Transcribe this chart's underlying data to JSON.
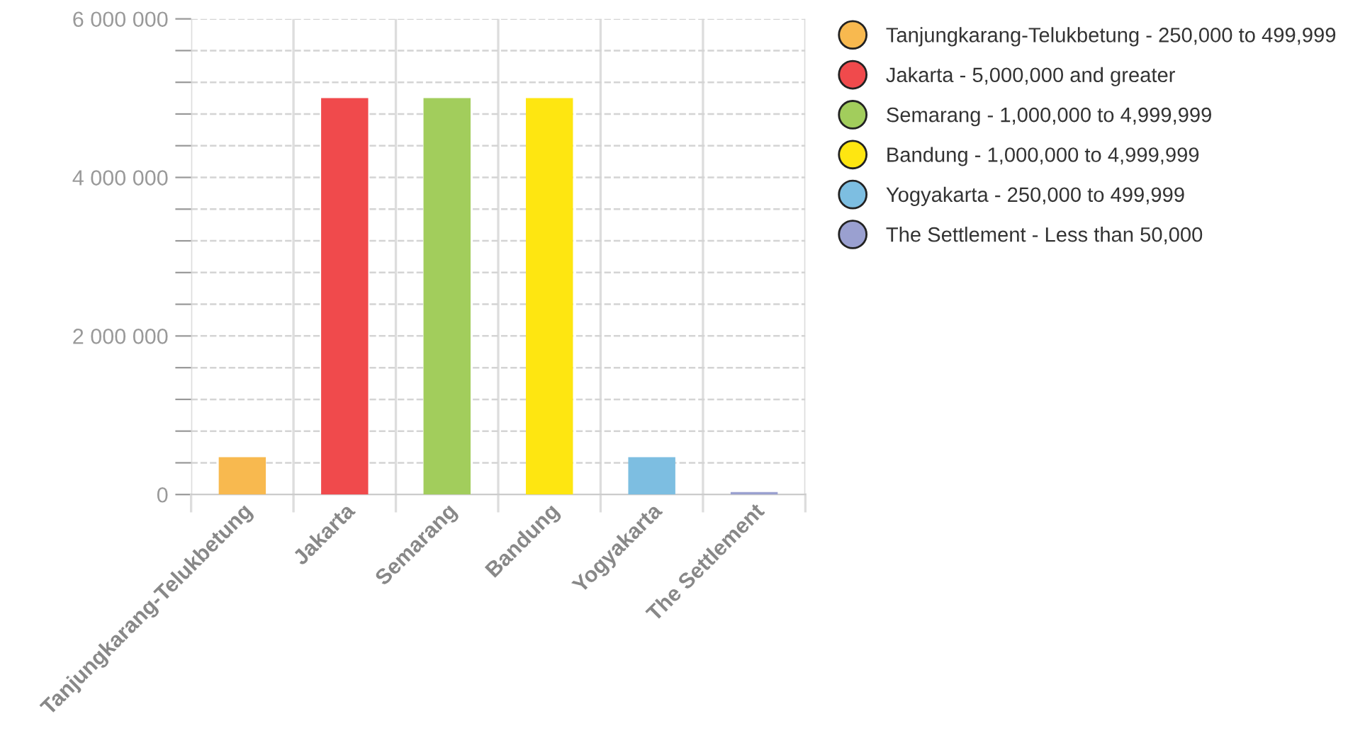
{
  "chart_data": {
    "type": "bar",
    "categories": [
      "Tanjungkarang-Telukbetung",
      "Jakarta",
      "Semarang",
      "Bandung",
      "Yogyakarta",
      "The Settlement"
    ],
    "series": [
      {
        "name": "Tanjungkarang-Telukbetung - 250,000 to 499,999",
        "color": "#f8b94f",
        "values": [
          470000,
          null,
          null,
          null,
          null,
          null
        ]
      },
      {
        "name": "Jakarta - 5,000,000 and greater",
        "color": "#f04a4c",
        "values": [
          null,
          5000000,
          null,
          null,
          null,
          null
        ]
      },
      {
        "name": "Semarang - 1,000,000 to 4,999,999",
        "color": "#a2cd5c",
        "values": [
          null,
          null,
          5000000,
          null,
          null,
          null
        ]
      },
      {
        "name": "Bandung - 1,000,000 to 4,999,999",
        "color": "#fee611",
        "values": [
          null,
          null,
          null,
          5000000,
          null,
          null
        ]
      },
      {
        "name": "Yogyakarta - 250,000 to 499,999",
        "color": "#7dbee1",
        "values": [
          null,
          null,
          null,
          null,
          470000,
          null
        ]
      },
      {
        "name": "The Settlement - Less than 50,000",
        "color": "#9aa0d0",
        "values": [
          null,
          null,
          null,
          null,
          null,
          30000
        ]
      }
    ],
    "ylim": [
      0,
      6000000
    ],
    "yticks": [
      {
        "value": 0,
        "label": "0"
      },
      {
        "value": 400000,
        "label": null
      },
      {
        "value": 800000,
        "label": null
      },
      {
        "value": 1200000,
        "label": null
      },
      {
        "value": 1600000,
        "label": null
      },
      {
        "value": 2000000,
        "label": "2 000 000"
      },
      {
        "value": 2400000,
        "label": null
      },
      {
        "value": 2800000,
        "label": null
      },
      {
        "value": 3200000,
        "label": null
      },
      {
        "value": 3600000,
        "label": null
      },
      {
        "value": 4000000,
        "label": "4 000 000"
      },
      {
        "value": 4400000,
        "label": null
      },
      {
        "value": 4800000,
        "label": null
      },
      {
        "value": 5200000,
        "label": null
      },
      {
        "value": 5600000,
        "label": null
      },
      {
        "value": 6000000,
        "label": "6 000 000"
      }
    ],
    "grid": true,
    "legend": "right"
  }
}
